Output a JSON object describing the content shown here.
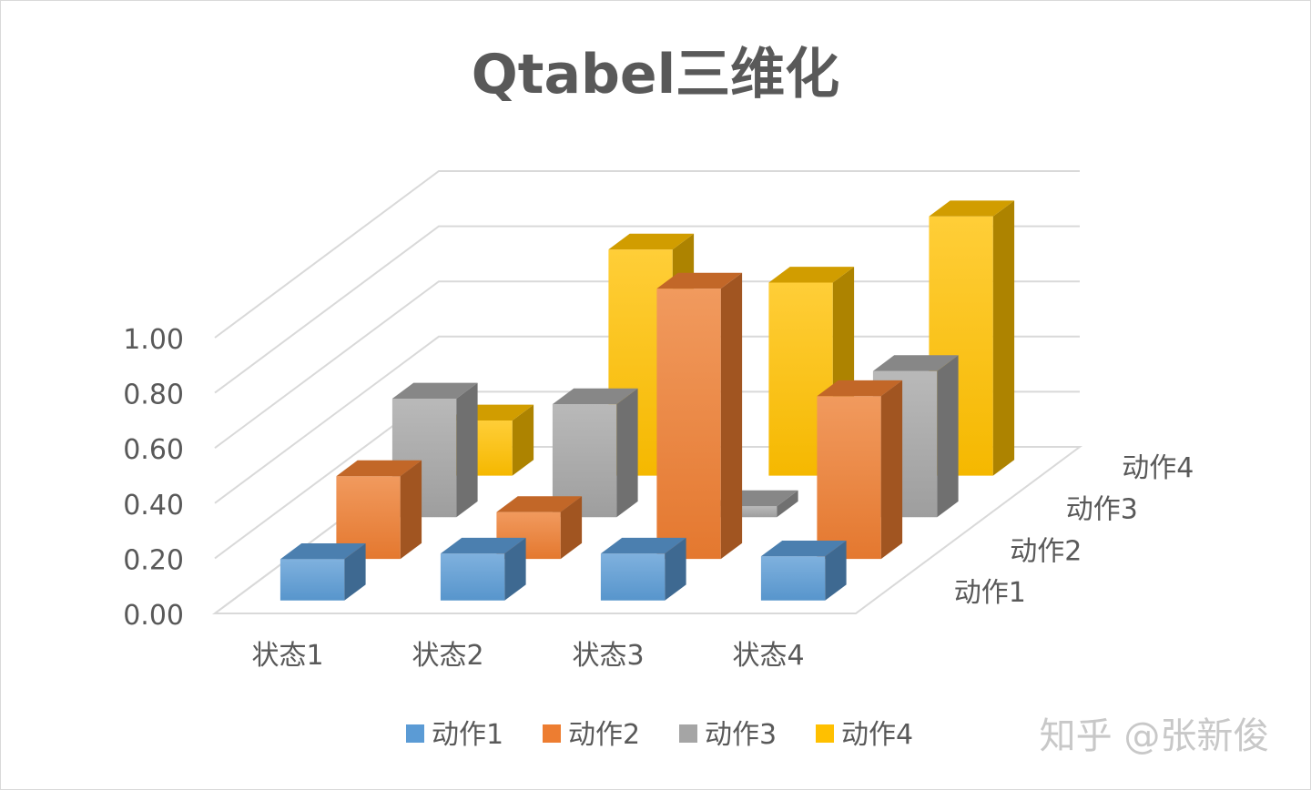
{
  "chart_data": {
    "type": "bar",
    "subtype": "3d-column",
    "title": "Qtabel三维化",
    "categories": [
      "状态1",
      "状态2",
      "状态3",
      "状态4"
    ],
    "depth_categories": [
      "动作1",
      "动作2",
      "动作3",
      "动作4"
    ],
    "series": [
      {
        "name": "动作1",
        "color": "#5b9bd5",
        "values": [
          0.15,
          0.17,
          0.17,
          0.16
        ]
      },
      {
        "name": "动作2",
        "color": "#ed7d31",
        "values": [
          0.3,
          0.17,
          0.98,
          0.59
        ]
      },
      {
        "name": "动作3",
        "color": "#a5a5a5",
        "values": [
          0.43,
          0.41,
          0.04,
          0.53
        ]
      },
      {
        "name": "动作4",
        "color": "#ffc000",
        "values": [
          0.2,
          0.82,
          0.7,
          0.94
        ]
      }
    ],
    "yticks": [
      "0.00",
      "0.20",
      "0.40",
      "0.60",
      "0.80",
      "1.00"
    ],
    "ylim": [
      0,
      1.0
    ],
    "grid": true,
    "legend": "bottom"
  },
  "watermark": "知乎 @张新俊"
}
